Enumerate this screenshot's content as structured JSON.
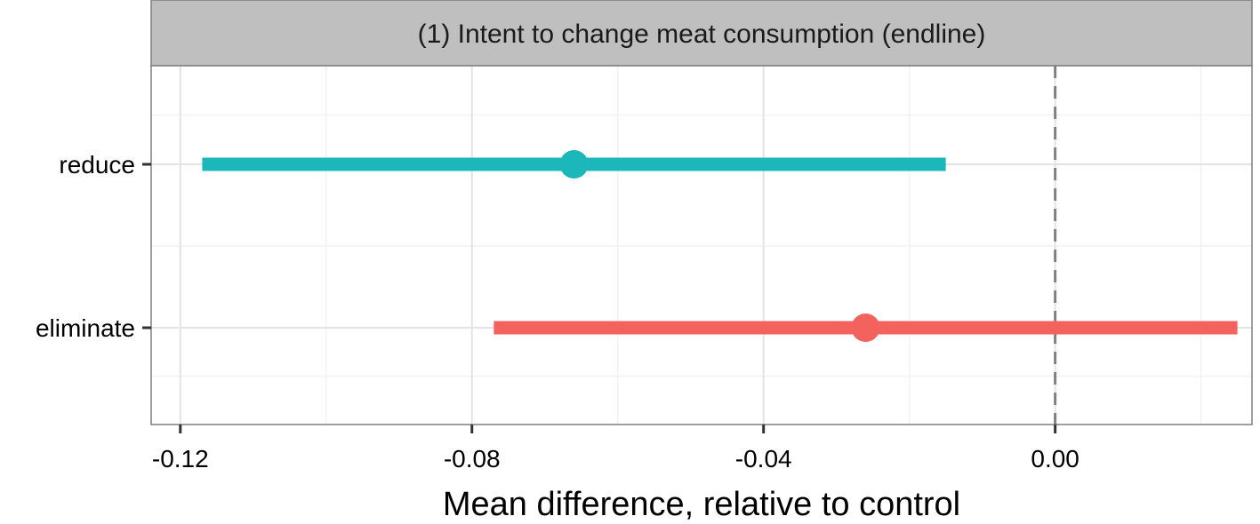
{
  "chart_data": {
    "type": "errorbar",
    "facet_title": "(1) Intent to change meat consumption (endline)",
    "xlabel": "Mean difference, relative to control",
    "ylabel": "",
    "xlim": [
      -0.124,
      0.027
    ],
    "x_ticks": [
      -0.12,
      -0.08,
      -0.04,
      0.0
    ],
    "x_tick_labels": [
      "-0.12",
      "-0.08",
      "-0.04",
      "0.00"
    ],
    "categories": [
      "reduce",
      "eliminate"
    ],
    "series": [
      {
        "category": "reduce",
        "estimate": -0.066,
        "ci_low": -0.117,
        "ci_high": -0.015,
        "color": "#1cb7ba"
      },
      {
        "category": "eliminate",
        "estimate": -0.026,
        "ci_low": -0.077,
        "ci_high": 0.025,
        "color": "#f4625d"
      }
    ],
    "reference_line": {
      "x": 0.0,
      "style": "dashed",
      "color": "#808080"
    },
    "grid": true,
    "theme": {
      "strip_fill": "#bfbfbf",
      "panel_border": "#7f7f7f",
      "grid_major": "#e3e3e3",
      "grid_minor": "#f2f2f2"
    }
  }
}
